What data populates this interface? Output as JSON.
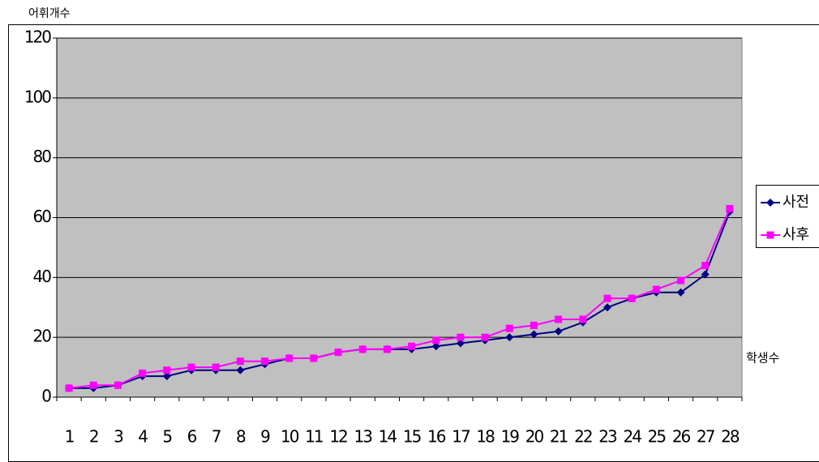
{
  "chart_data": {
    "type": "line",
    "y_label": "어휘개수",
    "x_label": "학생수",
    "categories": [
      "1",
      "2",
      "3",
      "4",
      "5",
      "6",
      "7",
      "8",
      "9",
      "10",
      "11",
      "12",
      "13",
      "14",
      "15",
      "16",
      "17",
      "18",
      "19",
      "20",
      "21",
      "22",
      "23",
      "24",
      "25",
      "26",
      "27",
      "28"
    ],
    "series": [
      {
        "name": "사전",
        "color": "#000080",
        "marker": "diamond",
        "values": [
          3,
          3,
          4,
          7,
          7,
          9,
          9,
          9,
          11,
          13,
          13,
          15,
          16,
          16,
          16,
          17,
          18,
          19,
          20,
          21,
          22,
          25,
          30,
          33,
          35,
          35,
          41,
          62
        ]
      },
      {
        "name": "사후",
        "color": "#ff00ff",
        "marker": "square",
        "values": [
          3,
          4,
          4,
          8,
          9,
          10,
          10,
          12,
          12,
          13,
          13,
          15,
          16,
          16,
          17,
          19,
          20,
          20,
          23,
          24,
          26,
          26,
          33,
          33,
          36,
          39,
          44,
          63
        ]
      }
    ],
    "ylim": [
      0,
      120
    ],
    "yticks": [
      0,
      20,
      40,
      60,
      80,
      100,
      120
    ],
    "grid": true,
    "legend": "right"
  }
}
